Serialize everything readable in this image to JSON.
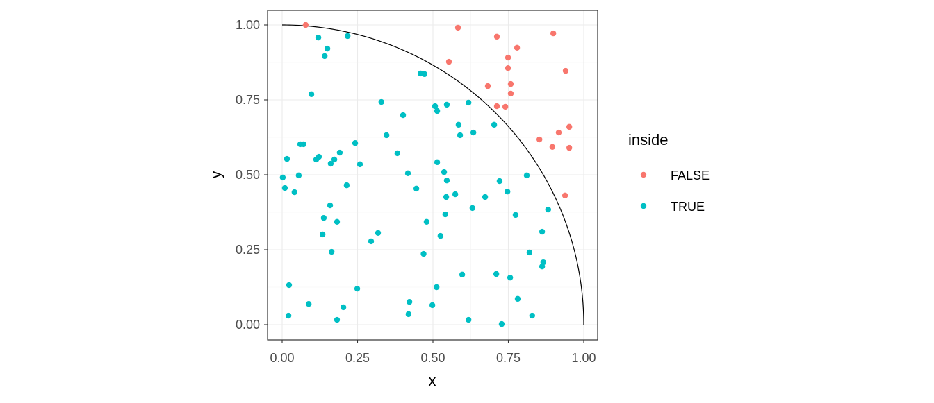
{
  "chart_data": {
    "type": "scatter",
    "xlabel": "x",
    "ylabel": "y",
    "xlim": [
      0,
      1
    ],
    "ylim": [
      0,
      1
    ],
    "x_ticks": [
      "0.00",
      "0.25",
      "0.50",
      "0.75",
      "1.00"
    ],
    "y_ticks": [
      "0.00",
      "0.25",
      "0.50",
      "0.75",
      "1.00"
    ],
    "grid": true,
    "legend": {
      "title": "inside",
      "placement": "right"
    },
    "curve": "quarter circle x^2 + y^2 = 1",
    "series": [
      {
        "name": "FALSE",
        "color": "#F8766D",
        "points": [
          [
            0.078,
            1.0
          ],
          [
            0.583,
            0.991
          ],
          [
            0.712,
            0.961
          ],
          [
            0.899,
            0.972
          ],
          [
            0.553,
            0.877
          ],
          [
            0.749,
            0.891
          ],
          [
            0.779,
            0.924
          ],
          [
            0.749,
            0.856
          ],
          [
            0.94,
            0.847
          ],
          [
            0.758,
            0.803
          ],
          [
            0.682,
            0.796
          ],
          [
            0.758,
            0.771
          ],
          [
            0.712,
            0.729
          ],
          [
            0.74,
            0.727
          ],
          [
            0.952,
            0.66
          ],
          [
            0.917,
            0.641
          ],
          [
            0.853,
            0.618
          ],
          [
            0.896,
            0.593
          ],
          [
            0.952,
            0.59
          ],
          [
            0.938,
            0.431
          ]
        ]
      },
      {
        "name": "TRUE",
        "color": "#00BFC4",
        "points": [
          [
            0.12,
            0.958
          ],
          [
            0.217,
            0.963
          ],
          [
            0.15,
            0.921
          ],
          [
            0.141,
            0.896
          ],
          [
            0.459,
            0.838
          ],
          [
            0.472,
            0.836
          ],
          [
            0.097,
            0.769
          ],
          [
            0.329,
            0.743
          ],
          [
            0.546,
            0.734
          ],
          [
            0.618,
            0.741
          ],
          [
            0.507,
            0.729
          ],
          [
            0.514,
            0.713
          ],
          [
            0.401,
            0.699
          ],
          [
            0.585,
            0.667
          ],
          [
            0.703,
            0.667
          ],
          [
            0.59,
            0.632
          ],
          [
            0.634,
            0.641
          ],
          [
            0.346,
            0.632
          ],
          [
            0.06,
            0.602
          ],
          [
            0.071,
            0.602
          ],
          [
            0.242,
            0.606
          ],
          [
            0.382,
            0.572
          ],
          [
            0.191,
            0.574
          ],
          [
            0.122,
            0.56
          ],
          [
            0.113,
            0.551
          ],
          [
            0.016,
            0.553
          ],
          [
            0.173,
            0.551
          ],
          [
            0.161,
            0.537
          ],
          [
            0.258,
            0.535
          ],
          [
            0.514,
            0.542
          ],
          [
            0.417,
            0.505
          ],
          [
            0.537,
            0.509
          ],
          [
            0.811,
            0.498
          ],
          [
            0.002,
            0.491
          ],
          [
            0.055,
            0.498
          ],
          [
            0.546,
            0.481
          ],
          [
            0.721,
            0.479
          ],
          [
            0.214,
            0.465
          ],
          [
            0.009,
            0.456
          ],
          [
            0.041,
            0.442
          ],
          [
            0.445,
            0.454
          ],
          [
            0.747,
            0.444
          ],
          [
            0.574,
            0.435
          ],
          [
            0.544,
            0.426
          ],
          [
            0.673,
            0.426
          ],
          [
            0.159,
            0.398
          ],
          [
            0.631,
            0.389
          ],
          [
            0.882,
            0.384
          ],
          [
            0.541,
            0.368
          ],
          [
            0.774,
            0.366
          ],
          [
            0.138,
            0.356
          ],
          [
            0.182,
            0.343
          ],
          [
            0.479,
            0.343
          ],
          [
            0.862,
            0.31
          ],
          [
            0.318,
            0.306
          ],
          [
            0.134,
            0.301
          ],
          [
            0.525,
            0.296
          ],
          [
            0.295,
            0.278
          ],
          [
            0.164,
            0.243
          ],
          [
            0.469,
            0.236
          ],
          [
            0.82,
            0.241
          ],
          [
            0.866,
            0.208
          ],
          [
            0.862,
            0.194
          ],
          [
            0.597,
            0.167
          ],
          [
            0.71,
            0.169
          ],
          [
            0.756,
            0.157
          ],
          [
            0.023,
            0.132
          ],
          [
            0.249,
            0.12
          ],
          [
            0.512,
            0.125
          ],
          [
            0.781,
            0.086
          ],
          [
            0.422,
            0.076
          ],
          [
            0.088,
            0.069
          ],
          [
            0.498,
            0.065
          ],
          [
            0.203,
            0.058
          ],
          [
            0.419,
            0.035
          ],
          [
            0.021,
            0.03
          ],
          [
            0.829,
            0.03
          ],
          [
            0.182,
            0.016
          ],
          [
            0.618,
            0.016
          ],
          [
            0.728,
            0.002
          ]
        ]
      }
    ]
  }
}
